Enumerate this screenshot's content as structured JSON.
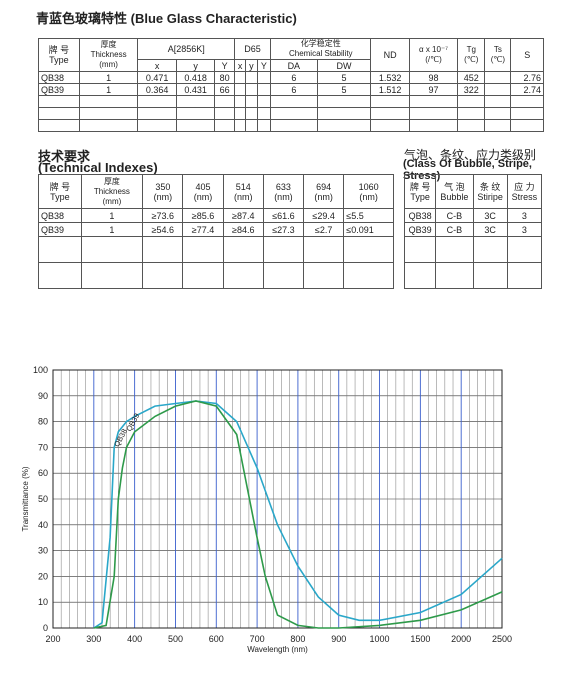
{
  "title1": "青蓝色玻璃特性 (Blue Glass Characteristic)",
  "table1": {
    "h_brand": "牌 号",
    "h_type": "Type",
    "h_thick_cn": "厚度",
    "h_thick_en": "Thickness",
    "h_thick_unit": "(mm)",
    "h_a": "A[2856K]",
    "h_d65": "D65",
    "h_chem_cn": "化学稳定性",
    "h_chem_en": "Chemical Stability",
    "h_nd": "ND",
    "h_alpha": "α x 10⁻⁷",
    "h_alpha_unit": "(/℃)",
    "h_tg": "Tg",
    "h_tg_unit": "(℃)",
    "h_ts": "Ts",
    "h_ts_unit": "(℃)",
    "h_s": "S",
    "sub": [
      "x",
      "y",
      "Y",
      "x",
      "y",
      "Y",
      "DA",
      "DW"
    ],
    "rows": [
      [
        "QB38",
        "1",
        "0.471",
        "0.418",
        "80",
        "",
        "",
        "",
        "6",
        "5",
        "1.532",
        "98",
        "452",
        "",
        "2.76"
      ],
      [
        "QB39",
        "1",
        "0.364",
        "0.431",
        "66",
        "",
        "",
        "",
        "6",
        "5",
        "1.512",
        "97",
        "322",
        "",
        "2.74"
      ]
    ]
  },
  "title2_cn": "技术要求",
  "title2_en": "(Technical Indexes)",
  "table2": {
    "h_brand": "牌 号",
    "h_type": "Type",
    "h_thick_cn": "厚度",
    "h_thick_en": "Thickness",
    "h_thick_unit": "(mm)",
    "wl": [
      "350",
      "405",
      "514",
      "633",
      "694",
      "1060"
    ],
    "wl_unit": "(nm)",
    "rows": [
      [
        "QB38",
        "1",
        "≥73.6",
        "≥85.6",
        "≥87.4",
        "≤61.6",
        "≤29.4",
        "≤5.5"
      ],
      [
        "QB39",
        "1",
        "≥54.6",
        "≥77.4",
        "≥84.6",
        "≤27.3",
        "≤2.7",
        "≤0.091"
      ]
    ]
  },
  "title3_cn": "气泡、条纹、应力类级别",
  "title3_en": "(Class Of Bubble, Stripe, Stress)",
  "table3": {
    "h": [
      [
        "牌 号",
        "Type"
      ],
      [
        "气 泡",
        "Bubble"
      ],
      [
        "条 纹",
        "Stiripe"
      ],
      [
        "应 力",
        "Stress"
      ]
    ],
    "rows": [
      [
        "QB38",
        "C-B",
        "3C",
        "3"
      ],
      [
        "QB39",
        "C-B",
        "3C",
        "3"
      ]
    ]
  },
  "chart_data": {
    "type": "line",
    "xlabel": "Wavelength (nm)",
    "ylabel": "Transmittance (%)",
    "x_ticks": [
      "200",
      "300",
      "400",
      "500",
      "600",
      "700",
      "800",
      "900",
      "1000",
      "1500",
      "2000",
      "2500"
    ],
    "y_ticks": [
      "0",
      "10",
      "20",
      "30",
      "40",
      "50",
      "60",
      "70",
      "80",
      "90",
      "100"
    ],
    "ylim": [
      0,
      100
    ],
    "grid": true,
    "series": [
      {
        "name": "QB38",
        "color": "#2aa7c9",
        "x": [
          300,
          320,
          340,
          350,
          360,
          380,
          400,
          450,
          500,
          550,
          600,
          650,
          700,
          750,
          800,
          850,
          900,
          950,
          1000,
          1500,
          2000,
          2500
        ],
        "y": [
          0,
          2,
          35,
          70,
          76,
          80,
          82,
          86,
          87,
          88,
          87,
          80,
          62,
          40,
          24,
          12,
          5,
          3,
          3,
          6,
          13,
          27
        ]
      },
      {
        "name": "QB39",
        "color": "#2e9a4a",
        "x": [
          300,
          330,
          350,
          360,
          370,
          380,
          400,
          450,
          500,
          550,
          600,
          650,
          700,
          720,
          750,
          800,
          850,
          900,
          1000,
          1500,
          2000,
          2500
        ],
        "y": [
          0,
          1,
          20,
          50,
          62,
          70,
          76,
          82,
          86,
          88,
          86,
          75,
          35,
          20,
          5,
          1,
          0,
          0,
          1,
          3,
          7,
          14
        ]
      }
    ]
  }
}
